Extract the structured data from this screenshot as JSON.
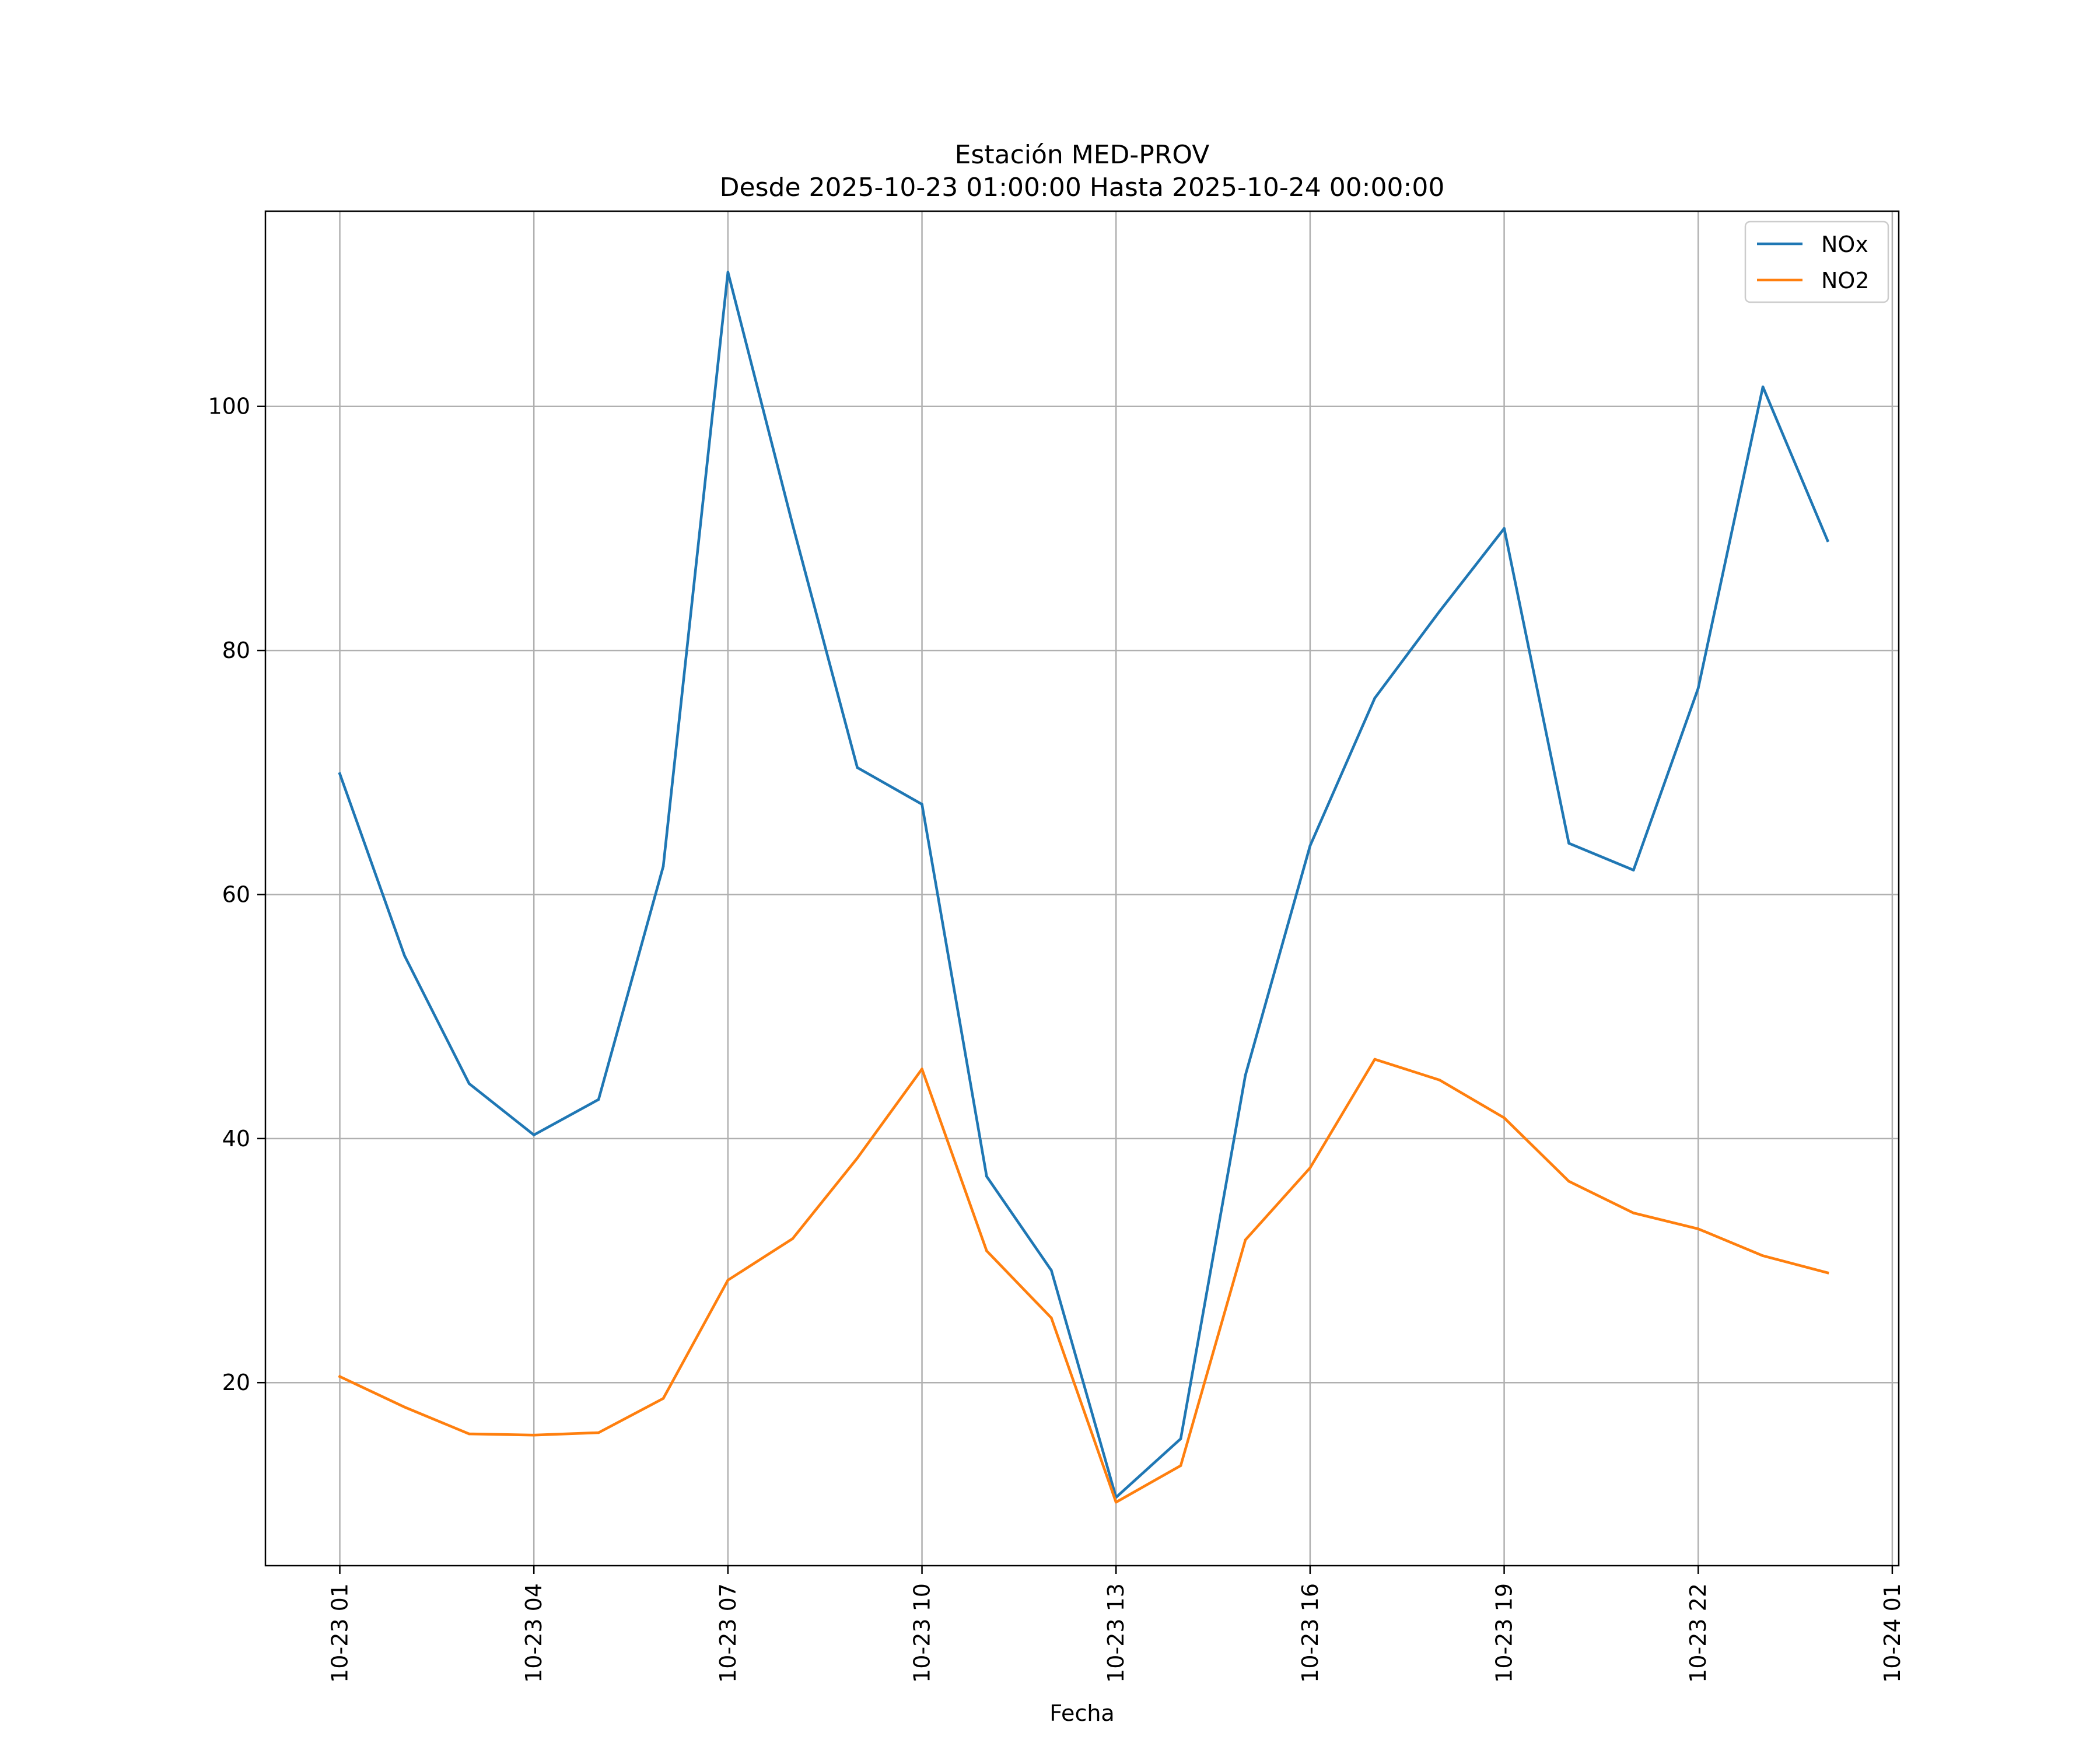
{
  "chart_data": {
    "type": "line",
    "title": [
      "Estación MED-PROV",
      "Desde 2025-10-23 01:00:00 Hasta 2025-10-24 00:00:00"
    ],
    "xlabel": "Fecha",
    "ylabel": "",
    "x": [
      "10-23 01",
      "10-23 02",
      "10-23 03",
      "10-23 04",
      "10-23 05",
      "10-23 06",
      "10-23 07",
      "10-23 08",
      "10-23 09",
      "10-23 10",
      "10-23 11",
      "10-23 12",
      "10-23 13",
      "10-23 14",
      "10-23 15",
      "10-23 16",
      "10-23 17",
      "10-23 18",
      "10-23 19",
      "10-23 20",
      "10-23 21",
      "10-23 22",
      "10-23 23",
      "10-24 00"
    ],
    "x_hours": [
      1,
      2,
      3,
      4,
      5,
      6,
      7,
      8,
      9,
      10,
      11,
      12,
      13,
      14,
      15,
      16,
      17,
      18,
      19,
      20,
      21,
      22,
      23,
      24
    ],
    "xlim": [
      -0.15,
      25.1
    ],
    "ylim": [
      5.0,
      116.0
    ],
    "x_ticks": [
      {
        "hour": 1,
        "label": "10-23 01"
      },
      {
        "hour": 4,
        "label": "10-23 04"
      },
      {
        "hour": 7,
        "label": "10-23 07"
      },
      {
        "hour": 10,
        "label": "10-23 10"
      },
      {
        "hour": 13,
        "label": "10-23 13"
      },
      {
        "hour": 16,
        "label": "10-23 16"
      },
      {
        "hour": 19,
        "label": "10-23 19"
      },
      {
        "hour": 22,
        "label": "10-23 22"
      },
      {
        "hour": 25,
        "label": "10-24 01"
      }
    ],
    "y_ticks": [
      20,
      40,
      60,
      80,
      100
    ],
    "grid": true,
    "legend_position": "top-right",
    "series": [
      {
        "name": "NOx",
        "color": "#1f77b4",
        "values": [
          69.9,
          55.0,
          44.5,
          40.3,
          43.2,
          62.3,
          111.0,
          90.3,
          70.4,
          67.4,
          36.9,
          29.2,
          10.6,
          15.4,
          45.2,
          64.0,
          76.1,
          83.2,
          90.0,
          64.2,
          62.0,
          76.9,
          101.6,
          89.0
        ]
      },
      {
        "name": "NO2",
        "color": "#ff7f0e",
        "values": [
          20.5,
          18.0,
          15.8,
          15.7,
          15.9,
          18.7,
          28.4,
          31.8,
          38.4,
          45.7,
          30.8,
          25.3,
          10.2,
          13.2,
          31.7,
          37.6,
          46.5,
          44.8,
          41.7,
          36.5,
          33.9,
          32.6,
          30.4,
          29.0
        ]
      }
    ]
  }
}
